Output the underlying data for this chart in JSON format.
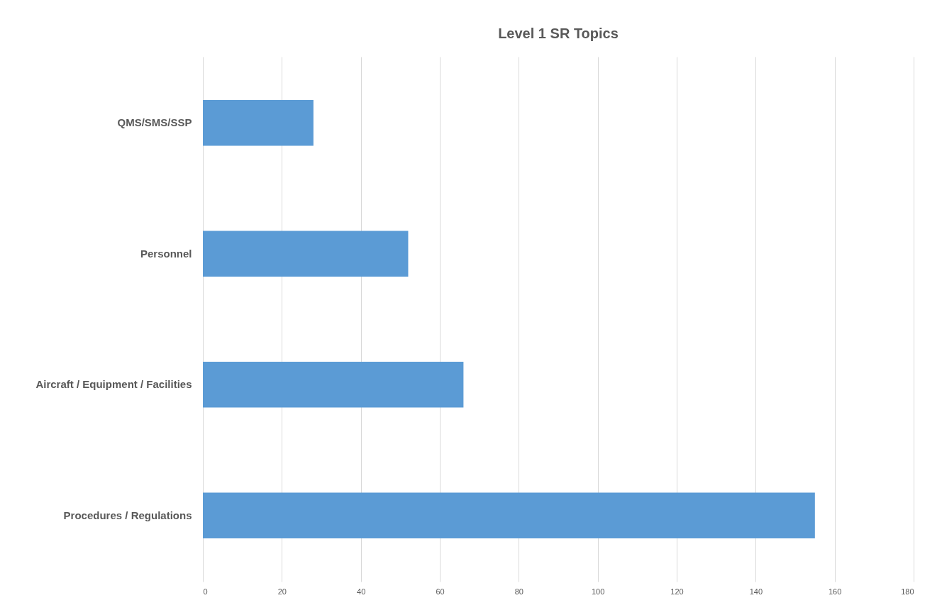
{
  "chart_data": {
    "type": "bar",
    "orientation": "horizontal",
    "title": "Level 1 SR Topics",
    "categories": [
      "QMS/SMS/SSP",
      "Personnel",
      "Aircraft / Equipment / Facilities",
      "Procedures / Regulations"
    ],
    "values": [
      28,
      52,
      66,
      155
    ],
    "color": "#5b9bd5",
    "xlim": [
      0,
      180
    ],
    "xticks": [
      0,
      20,
      40,
      60,
      80,
      100,
      120,
      140,
      160,
      180
    ],
    "grid": "x"
  }
}
